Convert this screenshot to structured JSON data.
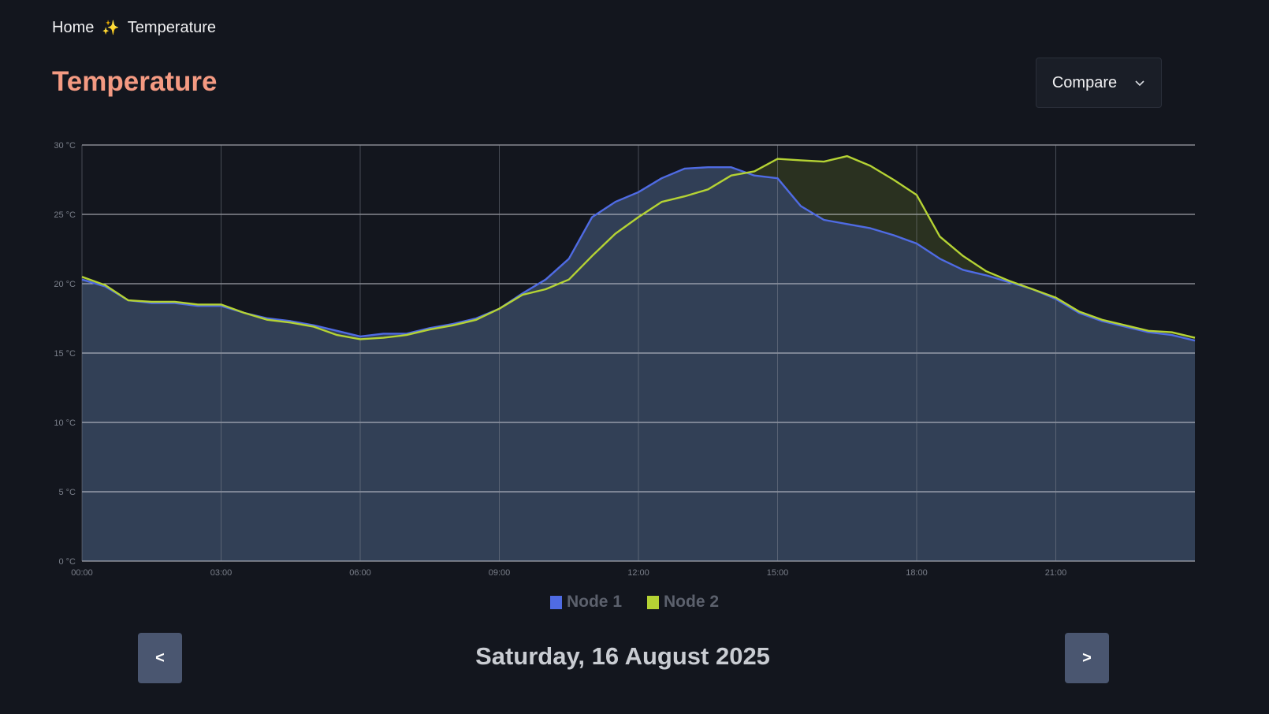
{
  "breadcrumb": {
    "home": "Home",
    "separator": "✨",
    "current": "Temperature"
  },
  "page_title": "Temperature",
  "compare": {
    "label": "Compare",
    "icon": "chevron-down-icon"
  },
  "date_label": "Saturday, 16 August 2025",
  "nav": {
    "prev": "<",
    "next": ">"
  },
  "chart_data": {
    "type": "area",
    "xlabel": "",
    "ylabel": "",
    "x_ticks": [
      "00:00",
      "03:00",
      "06:00",
      "09:00",
      "12:00",
      "15:00",
      "18:00",
      "21:00"
    ],
    "y_ticks": [
      "0 °C",
      "5 °C",
      "10 °C",
      "15 °C",
      "20 °C",
      "25 °C",
      "30 °C"
    ],
    "xlim": [
      0,
      24
    ],
    "ylim": [
      0,
      30
    ],
    "grid": true,
    "legend_position": "bottom",
    "x": [
      0,
      0.5,
      1,
      1.5,
      2,
      2.5,
      3,
      3.5,
      4,
      4.5,
      5,
      5.5,
      6,
      6.5,
      7,
      7.5,
      8,
      8.5,
      9,
      9.5,
      10,
      10.5,
      11,
      11.5,
      12,
      12.5,
      13,
      13.5,
      14,
      14.5,
      15,
      15.5,
      16,
      16.5,
      17,
      17.5,
      18,
      18.5,
      19,
      19.5,
      20,
      20.5,
      21,
      21.5,
      22,
      22.5,
      23,
      23.5,
      24
    ],
    "series": [
      {
        "name": "Node 1",
        "color": "#4f6be3",
        "fill": "#33415a",
        "values": [
          20.3,
          19.8,
          18.8,
          18.6,
          18.6,
          18.4,
          18.4,
          17.9,
          17.5,
          17.3,
          17.0,
          16.6,
          16.2,
          16.4,
          16.4,
          16.8,
          17.1,
          17.5,
          18.2,
          19.3,
          20.3,
          21.8,
          24.8,
          25.9,
          26.6,
          27.6,
          28.3,
          28.4,
          28.4,
          27.8,
          27.6,
          25.6,
          24.6,
          24.3,
          24.0,
          23.5,
          22.9,
          21.8,
          21.0,
          20.6,
          20.1,
          19.6,
          18.9,
          17.9,
          17.3,
          16.9,
          16.5,
          16.3,
          15.9
        ]
      },
      {
        "name": "Node 2",
        "color": "#b5d334",
        "fill": "#2a3120",
        "values": [
          20.5,
          19.9,
          18.8,
          18.7,
          18.7,
          18.5,
          18.5,
          17.9,
          17.4,
          17.2,
          16.9,
          16.3,
          16.0,
          16.1,
          16.3,
          16.7,
          17.0,
          17.4,
          18.2,
          19.2,
          19.6,
          20.3,
          22.0,
          23.6,
          24.8,
          25.9,
          26.3,
          26.8,
          27.8,
          28.1,
          29.0,
          28.9,
          28.8,
          29.2,
          28.5,
          27.5,
          26.4,
          23.4,
          22.0,
          20.9,
          20.2,
          19.6,
          19.0,
          18.0,
          17.4,
          17.0,
          16.6,
          16.5,
          16.1
        ]
      }
    ]
  }
}
